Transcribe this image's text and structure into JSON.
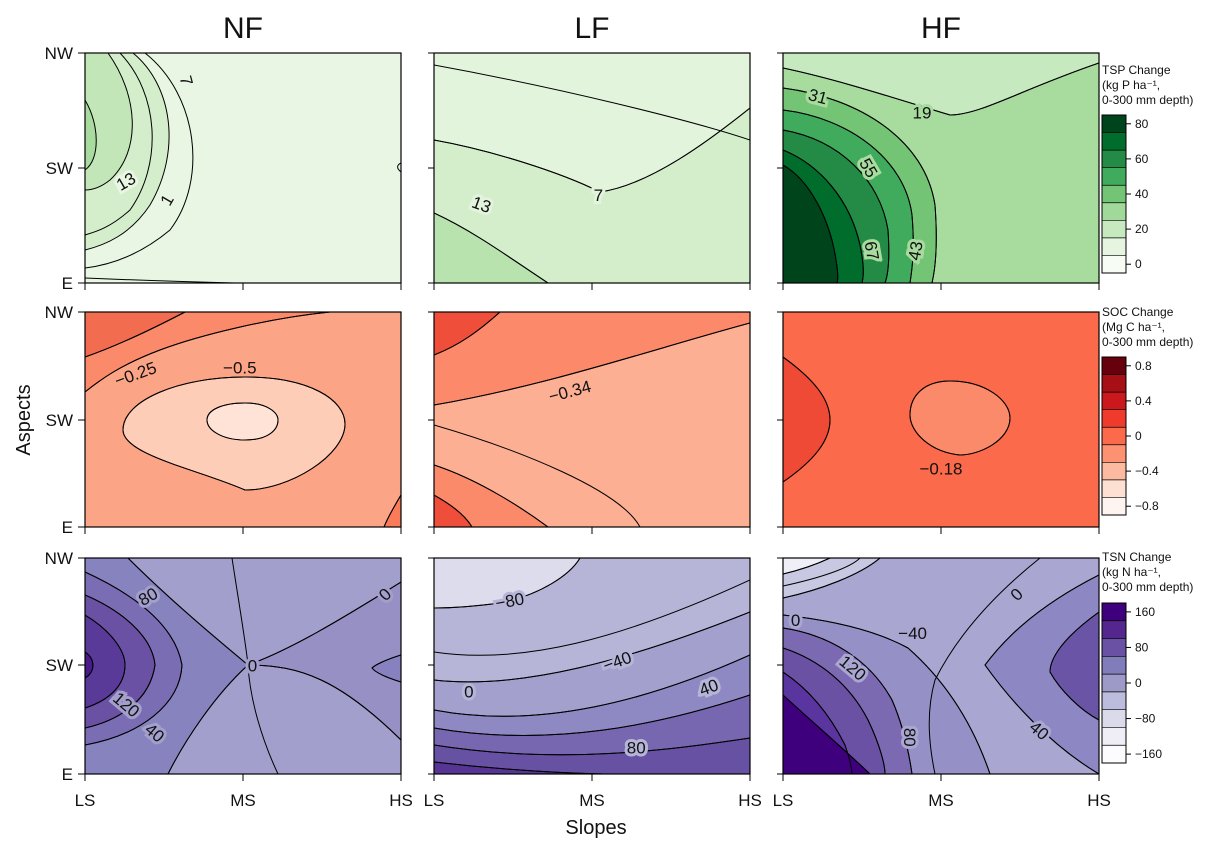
{
  "figure": {
    "column_titles": [
      "NF",
      "LF",
      "HF"
    ],
    "y_axis_label": "Aspects",
    "x_axis_label": "Slopes",
    "y_ticks": [
      "NW",
      "SW",
      "E"
    ],
    "x_ticks": [
      "LS",
      "MS",
      "HS"
    ]
  },
  "chart_data": [
    {
      "type": "heatmap",
      "row": "TSP",
      "colorbar": {
        "title": [
          "TSP Change",
          "(kg P ha⁻¹,",
          " 0-300 mm depth)"
        ],
        "ticks": [
          "80",
          "60",
          "40",
          "20",
          "0"
        ],
        "colors": [
          "#00441b",
          "#006d2c",
          "#238b45",
          "#41ab5d",
          "#74c476",
          "#a1d99b",
          "#c7e9c0",
          "#e5f5e0",
          "#f7fcf5"
        ]
      },
      "panels": [
        {
          "column": "NF",
          "background": "#e8f6e3",
          "contour_labels": [
            {
              "text": "7",
              "slope": 0.32,
              "aspect": 0.88,
              "angle": 75
            },
            {
              "text": "13",
              "slope": 0.13,
              "aspect": 0.44,
              "angle": -30
            },
            {
              "text": "1",
              "slope": 0.26,
              "aspect": 0.36,
              "angle": -60
            }
          ]
        },
        {
          "column": "LF",
          "background": "#e2f4dc",
          "contour_labels": [
            {
              "text": "13",
              "slope": 0.15,
              "aspect": 0.34,
              "angle": 20
            },
            {
              "text": "7",
              "slope": 0.52,
              "aspect": 0.38,
              "angle": 0
            }
          ]
        },
        {
          "column": "HF",
          "background": "#a8dc9e",
          "contour_labels": [
            {
              "text": "31",
              "slope": 0.11,
              "aspect": 0.81,
              "angle": 15
            },
            {
              "text": "19",
              "slope": 0.44,
              "aspect": 0.74,
              "angle": 0
            },
            {
              "text": "55",
              "slope": 0.27,
              "aspect": 0.5,
              "angle": 60
            },
            {
              "text": "67",
              "slope": 0.28,
              "aspect": 0.14,
              "angle": 80
            },
            {
              "text": "43",
              "slope": 0.42,
              "aspect": 0.14,
              "angle": -80
            }
          ]
        }
      ]
    },
    {
      "type": "heatmap",
      "row": "SOC",
      "colorbar": {
        "title": [
          "SOC Change",
          "(Mg C ha⁻¹,",
          " 0-300 mm depth)"
        ],
        "ticks": [
          "0.8",
          "0.4",
          "0",
          "−0.4",
          "−0.8"
        ],
        "colors": [
          "#67000d",
          "#a50f15",
          "#cb181d",
          "#ef3b2c",
          "#fb6a4a",
          "#fc9272",
          "#fcbba1",
          "#fee0d2",
          "#fff5f0"
        ]
      },
      "panels": [
        {
          "column": "NF",
          "background": "#fca486",
          "contour_labels": [
            {
              "text": "−0.25",
              "slope": 0.16,
              "aspect": 0.71,
              "angle": -20
            },
            {
              "text": "−0.5",
              "slope": 0.49,
              "aspect": 0.74,
              "angle": 0
            }
          ]
        },
        {
          "column": "LF",
          "background": "#fcaf93",
          "contour_labels": [
            {
              "text": "−0.34",
              "slope": 0.43,
              "aspect": 0.63,
              "angle": -15
            }
          ]
        },
        {
          "column": "HF",
          "background": "#fb6a4a",
          "contour_labels": [
            {
              "text": "−0.18",
              "slope": 0.5,
              "aspect": 0.27,
              "angle": 0
            }
          ]
        }
      ]
    },
    {
      "type": "heatmap",
      "row": "TSN",
      "colorbar": {
        "title": [
          "TSN Change",
          "(kg N ha⁻¹,",
          " 0-300 mm depth)"
        ],
        "ticks": [
          "160",
          "80",
          "0",
          "−80",
          "−160"
        ],
        "colors": [
          "#3f007d",
          "#54278f",
          "#6a51a3",
          "#807dba",
          "#9e9ac8",
          "#bcbddc",
          "#dadaeb",
          "#efedf5",
          "#fcfbfd"
        ]
      },
      "panels": [
        {
          "column": "NF",
          "background": "#a39fcc",
          "contour_labels": [
            {
              "text": "80",
              "slope": 0.2,
              "aspect": 0.82,
              "angle": -30
            },
            {
              "text": "120",
              "slope": 0.13,
              "aspect": 0.32,
              "angle": 40
            },
            {
              "text": "40",
              "slope": 0.22,
              "aspect": 0.19,
              "angle": 40
            },
            {
              "text": "0",
              "slope": 0.53,
              "aspect": 0.5,
              "angle": 0
            },
            {
              "text": "0",
              "slope": 0.95,
              "aspect": 0.83,
              "angle": -45
            }
          ]
        },
        {
          "column": "LF",
          "background": "#b6b5d8",
          "contour_labels": [
            {
              "text": "−80",
              "slope": 0.24,
              "aspect": 0.8,
              "angle": -10
            },
            {
              "text": "−40",
              "slope": 0.58,
              "aspect": 0.52,
              "angle": -20
            },
            {
              "text": "0",
              "slope": 0.11,
              "aspect": 0.38,
              "angle": 0
            },
            {
              "text": "40",
              "slope": 0.87,
              "aspect": 0.4,
              "angle": -20
            },
            {
              "text": "80",
              "slope": 0.64,
              "aspect": 0.12,
              "angle": 0
            }
          ]
        },
        {
          "column": "HF",
          "background": "#a9a6d1",
          "contour_labels": [
            {
              "text": "0",
              "slope": 0.04,
              "aspect": 0.71,
              "angle": 0
            },
            {
              "text": "−40",
              "slope": 0.41,
              "aspect": 0.65,
              "angle": 0
            },
            {
              "text": "0",
              "slope": 0.74,
              "aspect": 0.83,
              "angle": -45
            },
            {
              "text": "120",
              "slope": 0.22,
              "aspect": 0.49,
              "angle": 40
            },
            {
              "text": "80",
              "slope": 0.4,
              "aspect": 0.17,
              "angle": 90
            },
            {
              "text": "40",
              "slope": 0.81,
              "aspect": 0.2,
              "angle": 40
            }
          ]
        }
      ]
    }
  ]
}
